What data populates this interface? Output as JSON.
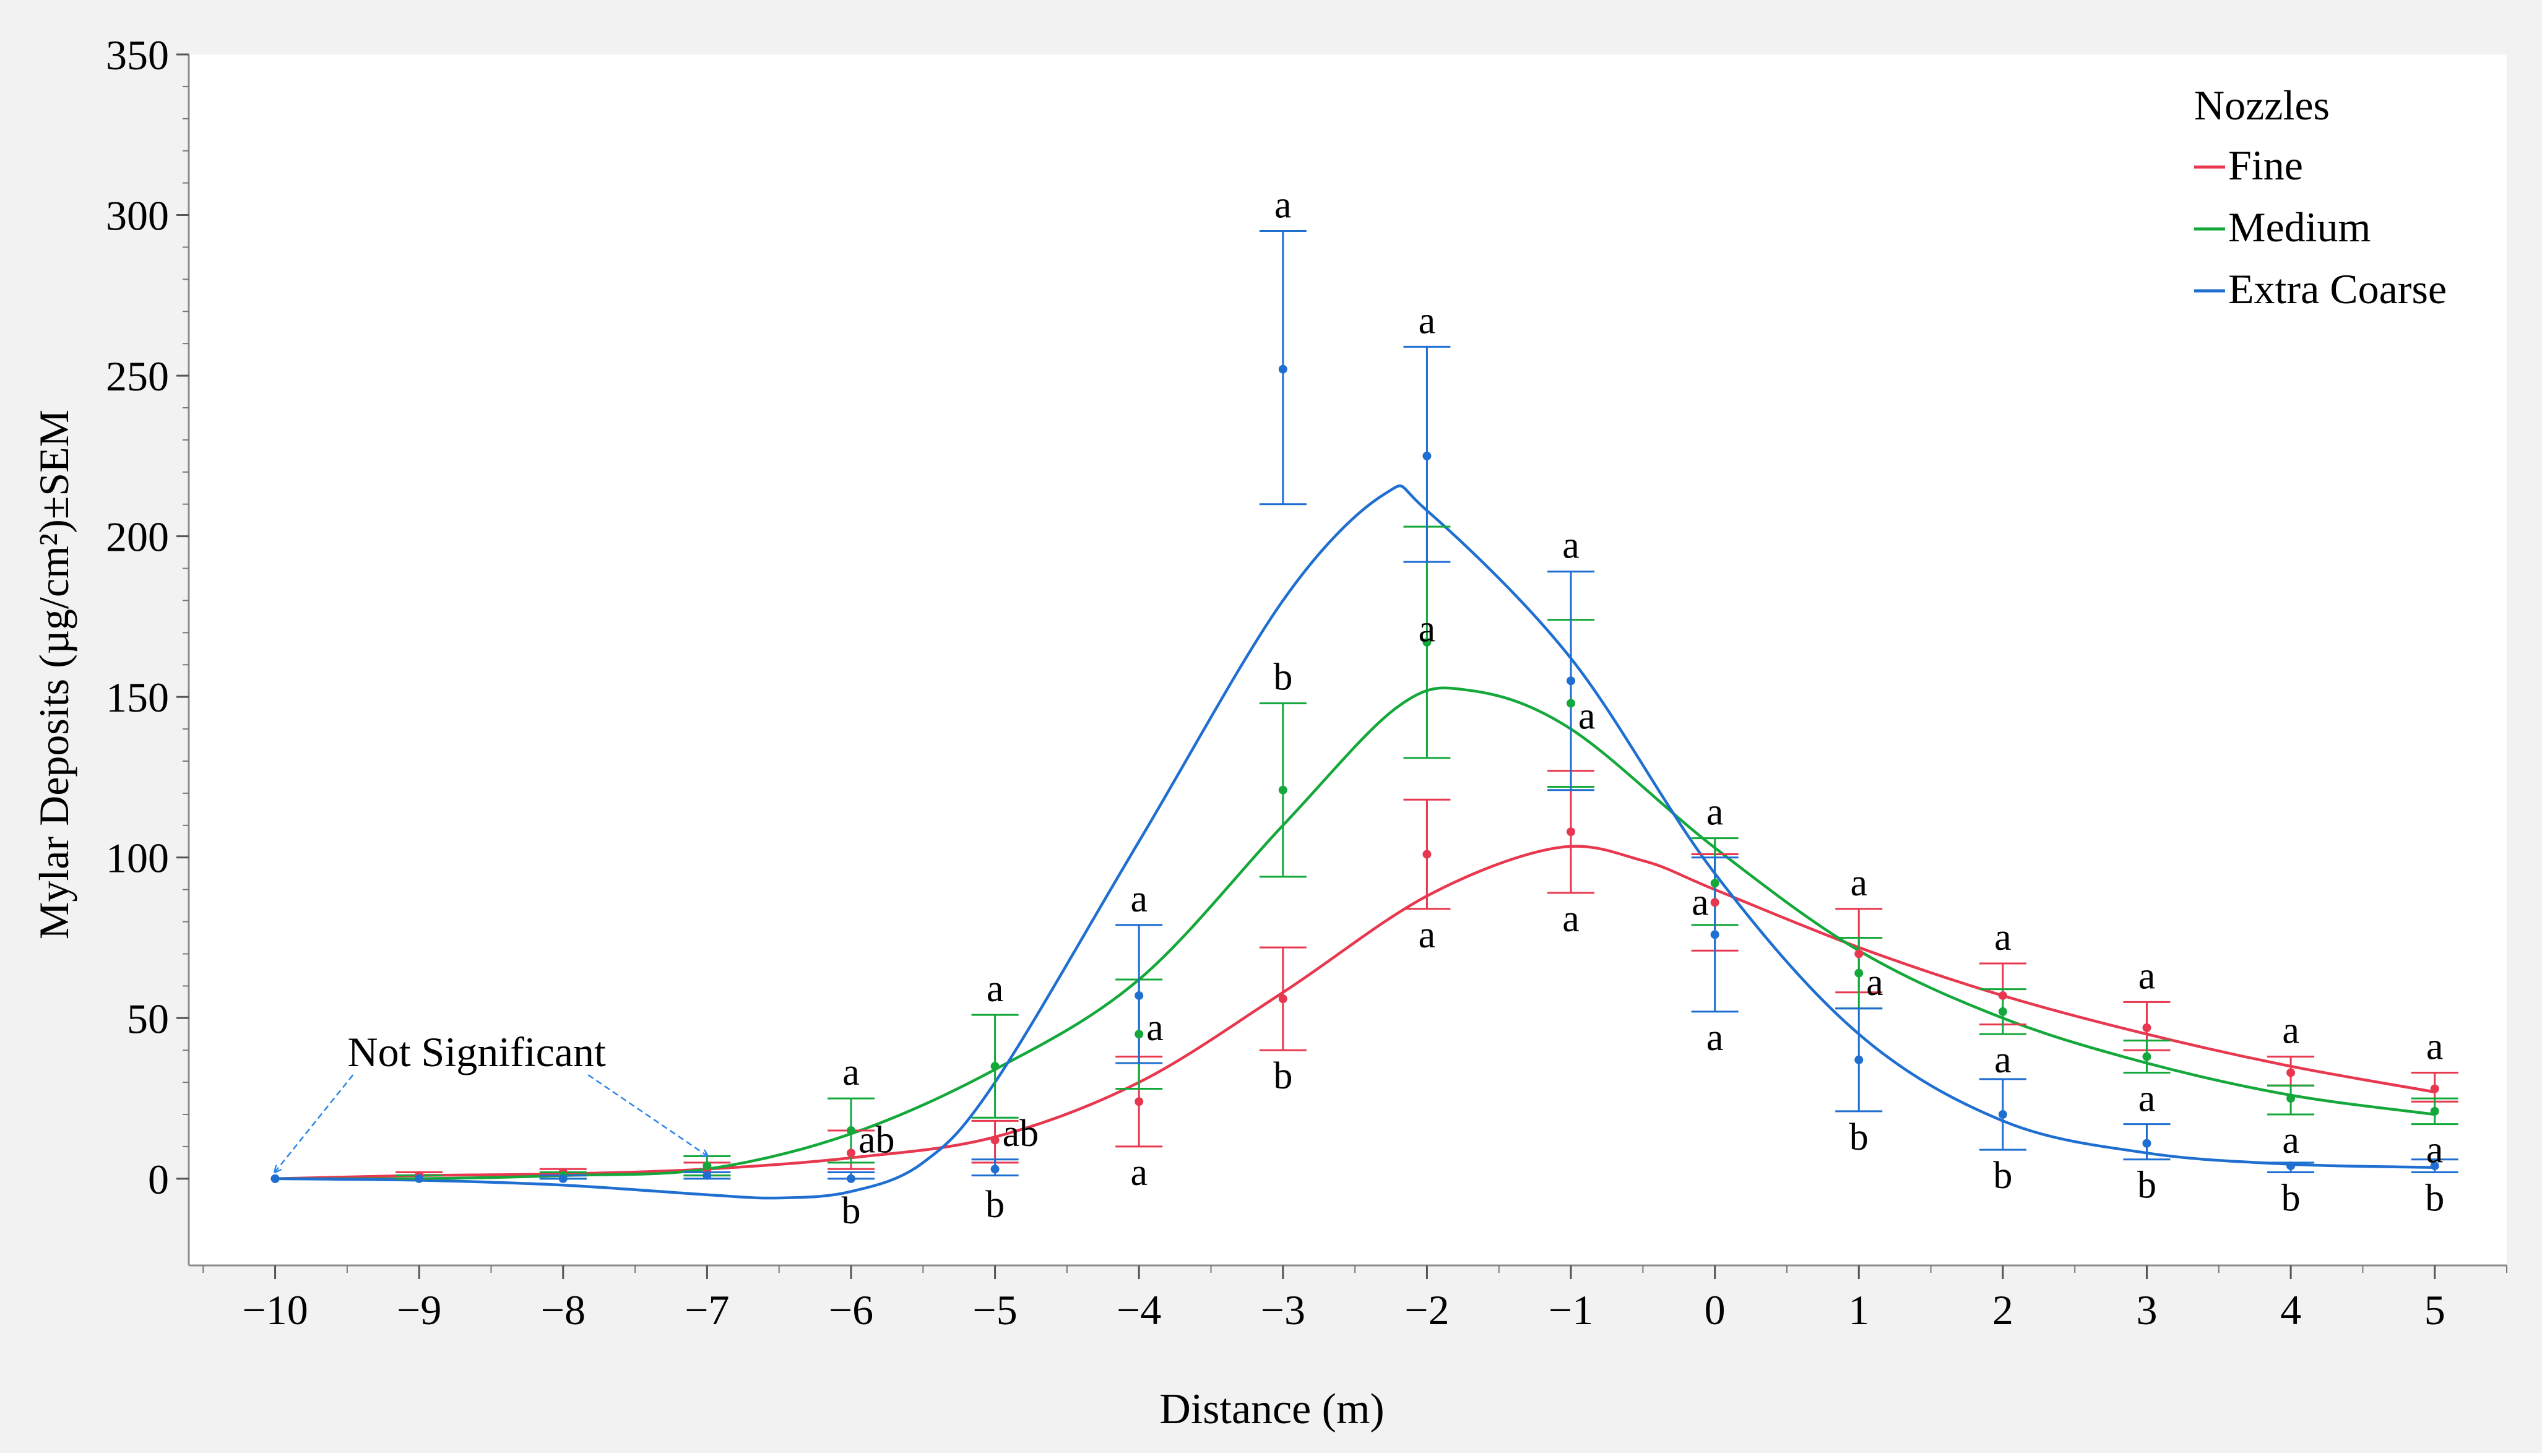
{
  "colors": {
    "fine": "#e8384f",
    "medium": "#14a83b",
    "extra_coarse": "#1f6fd1",
    "frame_bg": "#f2f2f2",
    "plot_bg": "#ffffff",
    "axis": "#8c8c8c",
    "annotation_arrow": "#2a86e8"
  },
  "chart_data": {
    "type": "line",
    "title": "",
    "xlabel": "Distance (m)",
    "ylabel": "Mylar Deposits (µg/cm²)±SEM",
    "xlim": [
      -10.6,
      5.5
    ],
    "ylim": [
      -27,
      350
    ],
    "x_ticks": [
      -10,
      -9,
      -8,
      -7,
      -6,
      -5,
      -4,
      -3,
      -2,
      -1,
      0,
      1,
      2,
      3,
      4,
      5
    ],
    "x_tick_labels": [
      "−10",
      "−9",
      "−8",
      "−7",
      "−6",
      "−5",
      "−4",
      "−3",
      "−2",
      "−1",
      "0",
      "1",
      "2",
      "3",
      "4",
      "5"
    ],
    "y_ticks": [
      0,
      50,
      100,
      150,
      200,
      250,
      300,
      350
    ],
    "y_tick_labels": [
      "0",
      "50",
      "100",
      "150",
      "200",
      "250",
      "300",
      "350"
    ],
    "legend": {
      "title": "Nozzles",
      "position": "top-right",
      "entries": [
        "Fine",
        "Medium",
        "Extra Coarse"
      ]
    },
    "series": [
      {
        "name": "Fine",
        "color_key": "fine",
        "points": [
          {
            "x": -10,
            "y": 0,
            "lo": 0,
            "hi": 0
          },
          {
            "x": -9,
            "y": 1,
            "lo": 0,
            "hi": 2
          },
          {
            "x": -8,
            "y": 2,
            "lo": 1,
            "hi": 3
          },
          {
            "x": -7,
            "y": 3,
            "lo": 1,
            "hi": 5
          },
          {
            "x": -6,
            "y": 8,
            "lo": 3,
            "hi": 15
          },
          {
            "x": -5,
            "y": 12,
            "lo": 5,
            "hi": 18
          },
          {
            "x": -4,
            "y": 24,
            "lo": 10,
            "hi": 38
          },
          {
            "x": -3,
            "y": 56,
            "lo": 40,
            "hi": 72
          },
          {
            "x": -2,
            "y": 101,
            "lo": 84,
            "hi": 118
          },
          {
            "x": -1,
            "y": 108,
            "lo": 89,
            "hi": 127
          },
          {
            "x": 0,
            "y": 86,
            "lo": 71,
            "hi": 101
          },
          {
            "x": 1,
            "y": 70,
            "lo": 58,
            "hi": 84
          },
          {
            "x": 2,
            "y": 57,
            "lo": 48,
            "hi": 67
          },
          {
            "x": 3,
            "y": 47,
            "lo": 40,
            "hi": 55
          },
          {
            "x": 4,
            "y": 33,
            "lo": 29,
            "hi": 38
          },
          {
            "x": 5,
            "y": 28,
            "lo": 24,
            "hi": 33
          }
        ],
        "fit": [
          [
            -10,
            0
          ],
          [
            -9,
            1
          ],
          [
            -8,
            1.5
          ],
          [
            -7,
            3
          ],
          [
            -6,
            6.5
          ],
          [
            -5,
            13
          ],
          [
            -4,
            30
          ],
          [
            -3,
            58
          ],
          [
            -2,
            88
          ],
          [
            -1.1,
            103
          ],
          [
            -0.5,
            99
          ],
          [
            0,
            90
          ],
          [
            1,
            72
          ],
          [
            2,
            57
          ],
          [
            3,
            45
          ],
          [
            4,
            35
          ],
          [
            5,
            27
          ]
        ],
        "letters": [
          {
            "x": -6,
            "text": "ab",
            "pos": "right",
            "y": 12
          },
          {
            "x": -5,
            "text": "ab",
            "pos": "right",
            "y": 14
          },
          {
            "x": -4,
            "text": "a",
            "pos": "below",
            "y": 10
          },
          {
            "x": -3,
            "text": "b",
            "pos": "below",
            "y": 40
          },
          {
            "x": -2,
            "text": "a",
            "pos": "below",
            "y": 84
          },
          {
            "x": -1,
            "text": "a",
            "pos": "below",
            "y": 89
          },
          {
            "x": 0,
            "text": "a",
            "pos": "left",
            "y": 86
          },
          {
            "x": 1,
            "text": "a",
            "pos": "above",
            "y": 84
          },
          {
            "x": 2,
            "text": "a",
            "pos": "above",
            "y": 67
          },
          {
            "x": 3,
            "text": "a",
            "pos": "above",
            "y": 55
          },
          {
            "x": 4,
            "text": "a",
            "pos": "above",
            "y": 38
          },
          {
            "x": 5,
            "text": "a",
            "pos": "above",
            "y": 33
          }
        ]
      },
      {
        "name": "Medium",
        "color_key": "medium",
        "points": [
          {
            "x": -10,
            "y": 0,
            "lo": 0,
            "hi": 0
          },
          {
            "x": -9,
            "y": 0,
            "lo": 0,
            "hi": 1
          },
          {
            "x": -8,
            "y": 1,
            "lo": 0,
            "hi": 2
          },
          {
            "x": -7,
            "y": 4,
            "lo": 1,
            "hi": 7
          },
          {
            "x": -6,
            "y": 15,
            "lo": 5,
            "hi": 25
          },
          {
            "x": -5,
            "y": 35,
            "lo": 19,
            "hi": 51
          },
          {
            "x": -4,
            "y": 45,
            "lo": 28,
            "hi": 62
          },
          {
            "x": -3,
            "y": 121,
            "lo": 94,
            "hi": 148
          },
          {
            "x": -2,
            "y": 167,
            "lo": 131,
            "hi": 203
          },
          {
            "x": -1,
            "y": 148,
            "lo": 122,
            "hi": 174
          },
          {
            "x": 0,
            "y": 92,
            "lo": 79,
            "hi": 106
          },
          {
            "x": 1,
            "y": 64,
            "lo": 53,
            "hi": 75
          },
          {
            "x": 2,
            "y": 52,
            "lo": 45,
            "hi": 59
          },
          {
            "x": 3,
            "y": 38,
            "lo": 33,
            "hi": 43
          },
          {
            "x": 4,
            "y": 25,
            "lo": 20,
            "hi": 29
          },
          {
            "x": 5,
            "y": 21,
            "lo": 17,
            "hi": 25
          }
        ],
        "fit": [
          [
            -10,
            0
          ],
          [
            -9,
            0
          ],
          [
            -8,
            1
          ],
          [
            -7,
            3
          ],
          [
            -6,
            14
          ],
          [
            -5,
            34
          ],
          [
            -4,
            62
          ],
          [
            -3,
            110
          ],
          [
            -2.2,
            147
          ],
          [
            -1.7,
            152
          ],
          [
            -1,
            140
          ],
          [
            0,
            103
          ],
          [
            1,
            71
          ],
          [
            2,
            50
          ],
          [
            3,
            36
          ],
          [
            4,
            26
          ],
          [
            5,
            20
          ]
        ],
        "letters": [
          {
            "x": -6,
            "text": "a",
            "pos": "above",
            "y": 25
          },
          {
            "x": -5,
            "text": "a",
            "pos": "above",
            "y": 51
          },
          {
            "x": -4,
            "text": "a",
            "pos": "right",
            "y": 47
          },
          {
            "x": -3,
            "text": "b",
            "pos": "above",
            "y": 148
          },
          {
            "x": -2,
            "text": "a",
            "pos": "above",
            "y": 163
          },
          {
            "x": -1,
            "text": "a",
            "pos": "right",
            "y": 144
          },
          {
            "x": 0,
            "text": "a",
            "pos": "above",
            "y": 106
          },
          {
            "x": 1,
            "text": "a",
            "pos": "right",
            "y": 61
          },
          {
            "x": 2,
            "text": "a",
            "pos": "below",
            "y": 45
          },
          {
            "x": 3,
            "text": "a",
            "pos": "below",
            "y": 33
          },
          {
            "x": 4,
            "text": "a",
            "pos": "below",
            "y": 20
          },
          {
            "x": 5,
            "text": "a",
            "pos": "below",
            "y": 17
          }
        ]
      },
      {
        "name": "Extra Coarse",
        "color_key": "extra_coarse",
        "points": [
          {
            "x": -10,
            "y": 0,
            "lo": 0,
            "hi": 0
          },
          {
            "x": -9,
            "y": 0,
            "lo": 0,
            "hi": 0
          },
          {
            "x": -8,
            "y": 0,
            "lo": 0,
            "hi": 1
          },
          {
            "x": -7,
            "y": 1,
            "lo": 0,
            "hi": 2
          },
          {
            "x": -6,
            "y": 0,
            "lo": 0,
            "hi": 2
          },
          {
            "x": -5,
            "y": 3,
            "lo": 1,
            "hi": 6
          },
          {
            "x": -4,
            "y": 57,
            "lo": 36,
            "hi": 79
          },
          {
            "x": -3,
            "y": 252,
            "lo": 210,
            "hi": 295
          },
          {
            "x": -2,
            "y": 225,
            "lo": 192,
            "hi": 259
          },
          {
            "x": -1,
            "y": 155,
            "lo": 121,
            "hi": 189
          },
          {
            "x": 0,
            "y": 76,
            "lo": 52,
            "hi": 100
          },
          {
            "x": 1,
            "y": 37,
            "lo": 21,
            "hi": 53
          },
          {
            "x": 2,
            "y": 20,
            "lo": 9,
            "hi": 31
          },
          {
            "x": 3,
            "y": 11,
            "lo": 6,
            "hi": 17
          },
          {
            "x": 4,
            "y": 4,
            "lo": 2,
            "hi": 5
          },
          {
            "x": 5,
            "y": 4,
            "lo": 2,
            "hi": 6
          }
        ],
        "fit": [
          [
            -10,
            0
          ],
          [
            -9,
            -0.5
          ],
          [
            -8,
            -2
          ],
          [
            -7,
            -5
          ],
          [
            -6.5,
            -6
          ],
          [
            -6,
            -4
          ],
          [
            -5.5,
            5
          ],
          [
            -5,
            30
          ],
          [
            -4,
            105
          ],
          [
            -3,
            180
          ],
          [
            -2.3,
            213
          ],
          [
            -2,
            208
          ],
          [
            -1,
            162
          ],
          [
            0,
            95
          ],
          [
            1,
            45
          ],
          [
            2,
            18
          ],
          [
            3,
            8
          ],
          [
            4,
            4.5
          ],
          [
            5,
            3.5
          ]
        ],
        "letters": [
          {
            "x": -6,
            "text": "b",
            "pos": "below",
            "y": -2
          },
          {
            "x": -5,
            "text": "b",
            "pos": "below",
            "y": 0
          },
          {
            "x": -4,
            "text": "a",
            "pos": "above",
            "y": 79
          },
          {
            "x": -3,
            "text": "a",
            "pos": "above",
            "y": 295
          },
          {
            "x": -2,
            "text": "a",
            "pos": "above",
            "y": 259
          },
          {
            "x": -1,
            "text": "a",
            "pos": "above",
            "y": 189
          },
          {
            "x": 0,
            "text": "a",
            "pos": "below",
            "y": 52
          },
          {
            "x": 1,
            "text": "b",
            "pos": "below",
            "y": 21
          },
          {
            "x": 2,
            "text": "b",
            "pos": "below",
            "y": 9
          },
          {
            "x": 3,
            "text": "b",
            "pos": "below",
            "y": 6
          },
          {
            "x": 4,
            "text": "b",
            "pos": "below",
            "y": 2
          },
          {
            "x": 5,
            "text": "b",
            "pos": "below",
            "y": 2
          }
        ]
      }
    ],
    "annotation": {
      "text": "Not Significant",
      "anchor_x": -8.6,
      "anchor_y": 35,
      "arrows_to": [
        {
          "x": -10,
          "y": 1
        },
        {
          "x": -7,
          "y": 6
        }
      ]
    }
  }
}
